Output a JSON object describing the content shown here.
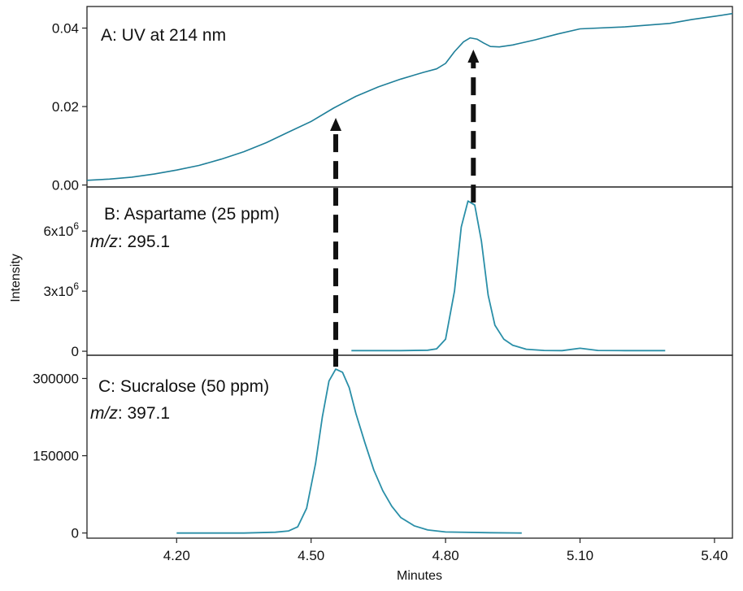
{
  "chart_data": {
    "type": "line",
    "colors": {
      "trace": "#2a8fa8",
      "uv_trace": "#1f7f99",
      "arrow": "#111111",
      "frame": "#222222"
    },
    "ylabel": "Intensity",
    "xlabel": "Minutes",
    "xlim": [
      4.0,
      5.44
    ],
    "xticks": [
      4.2,
      4.5,
      4.8,
      5.1,
      5.4
    ],
    "xtick_labels": [
      "4.20",
      "4.50",
      "4.80",
      "5.10",
      "5.40"
    ],
    "panels": [
      {
        "id": "A",
        "label": "A: UV at 214 nm",
        "label_mz": "",
        "label_mz_value": "",
        "ylim": [
          -0.0005,
          0.0455
        ],
        "yticks": [
          0.0,
          0.02,
          0.04
        ],
        "ytick_labels": [
          "0.00",
          "0.02",
          "0.04"
        ],
        "series": [
          {
            "x": [
              4.0,
              4.05,
              4.1,
              4.15,
              4.2,
              4.25,
              4.3,
              4.35,
              4.4,
              4.45,
              4.5,
              4.55,
              4.6,
              4.65,
              4.7,
              4.75,
              4.78,
              4.8,
              4.82,
              4.84,
              4.855,
              4.87,
              4.885,
              4.9,
              4.92,
              4.95,
              5.0,
              5.05,
              5.1,
              5.2,
              5.3,
              5.35,
              5.4,
              5.44
            ],
            "y": [
              0.0012,
              0.0015,
              0.002,
              0.0028,
              0.0038,
              0.005,
              0.0066,
              0.0085,
              0.0108,
              0.0135,
              0.0162,
              0.0196,
              0.0226,
              0.025,
              0.027,
              0.0287,
              0.0296,
              0.031,
              0.034,
              0.0365,
              0.0375,
              0.0372,
              0.0362,
              0.0353,
              0.0352,
              0.0357,
              0.037,
              0.0385,
              0.0398,
              0.0403,
              0.0412,
              0.0422,
              0.043,
              0.0437
            ]
          }
        ]
      },
      {
        "id": "B",
        "label": "B: Aspartame (25 ppm)",
        "label_mz": "m/z",
        "label_mz_value": ": 295.1",
        "ylim": [
          -200000,
          8200000
        ],
        "yticks": [
          0,
          3000000,
          6000000
        ],
        "ytick_labels": [
          {
            "base": "0",
            "exp": ""
          },
          {
            "base": "3x10",
            "exp": "6"
          },
          {
            "base": "6x10",
            "exp": "6"
          }
        ],
        "series": [
          {
            "x": [
              4.59,
              4.7,
              4.76,
              4.78,
              4.8,
              4.82,
              4.835,
              4.85,
              4.865,
              4.88,
              4.895,
              4.91,
              4.93,
              4.95,
              4.98,
              5.02,
              5.06,
              5.1,
              5.14,
              5.2,
              5.29
            ],
            "y": [
              30000,
              30000,
              50000,
              120000,
              600000,
              3000000,
              6200000,
              7500000,
              7300000,
              5500000,
              2800000,
              1300000,
              600000,
              300000,
              100000,
              40000,
              30000,
              150000,
              40000,
              30000,
              30000
            ]
          }
        ]
      },
      {
        "id": "C",
        "label": "C: Sucralose (50 ppm)",
        "label_mz": "m/z",
        "label_mz_value": ": 397.1",
        "ylim": [
          -10000,
          345000
        ],
        "yticks": [
          0,
          150000,
          300000
        ],
        "ytick_labels": [
          "0",
          "150000",
          "300000"
        ],
        "series": [
          {
            "x": [
              4.2,
              4.35,
              4.42,
              4.45,
              4.47,
              4.49,
              4.51,
              4.525,
              4.54,
              4.555,
              4.57,
              4.585,
              4.6,
              4.62,
              4.64,
              4.66,
              4.68,
              4.7,
              4.73,
              4.76,
              4.8,
              4.9,
              4.97
            ],
            "y": [
              0,
              0,
              1500,
              4000,
              12000,
              48000,
              135000,
              225000,
              295000,
              318000,
              312000,
              282000,
              232000,
              175000,
              122000,
              82000,
              52000,
              30000,
              14000,
              6000,
              2000,
              500,
              0
            ]
          }
        ]
      }
    ],
    "annotations": [
      {
        "type": "dashed-arrow",
        "x": 4.555,
        "from_panel": "C",
        "from_y": 318000,
        "to_panel": "A",
        "to_y": 0.0196
      },
      {
        "type": "dashed-arrow",
        "x": 4.862,
        "from_panel": "B",
        "from_y": 7300000,
        "to_panel": "A",
        "to_y": 0.037
      }
    ]
  }
}
